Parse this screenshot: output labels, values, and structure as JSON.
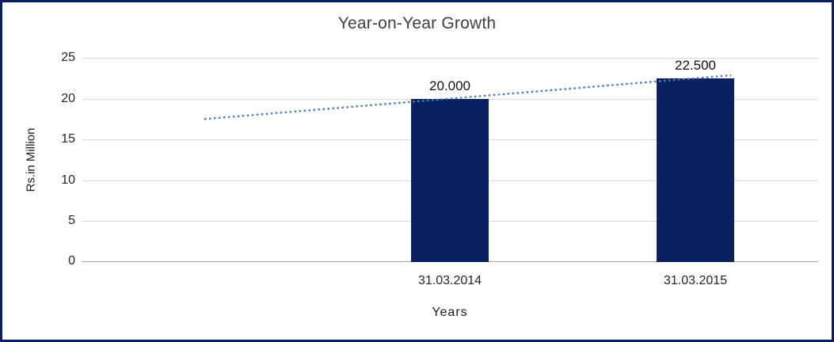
{
  "chart": {
    "title": "Year-on-Year Growth",
    "y_axis_title": "Rs.in Million",
    "x_axis_title": "Years"
  },
  "colors": {
    "bar": "#0a2060",
    "border": "#0a2060",
    "trendline": "#4a7ebb",
    "gridline": "#d9d9d9",
    "axis_line": "#a6a6a6"
  },
  "chart_data": {
    "type": "bar",
    "title": "Year-on-Year Growth",
    "xlabel": "Years",
    "ylabel": "Rs.in Million",
    "categories": [
      "",
      "31.03.2014",
      "31.03.2015"
    ],
    "values": [
      null,
      20.0,
      22.5
    ],
    "value_labels": [
      "",
      "20.000",
      "22.500"
    ],
    "ylim": [
      0,
      25
    ],
    "yticks": [
      0,
      5,
      10,
      15,
      20,
      25
    ],
    "ytick_labels": [
      "0",
      "5",
      "10",
      "15",
      "20",
      "25"
    ],
    "grid": true,
    "legend": "none",
    "trendline": {
      "style": "dotted",
      "values": [
        17.5,
        20.0,
        22.5
      ]
    }
  }
}
